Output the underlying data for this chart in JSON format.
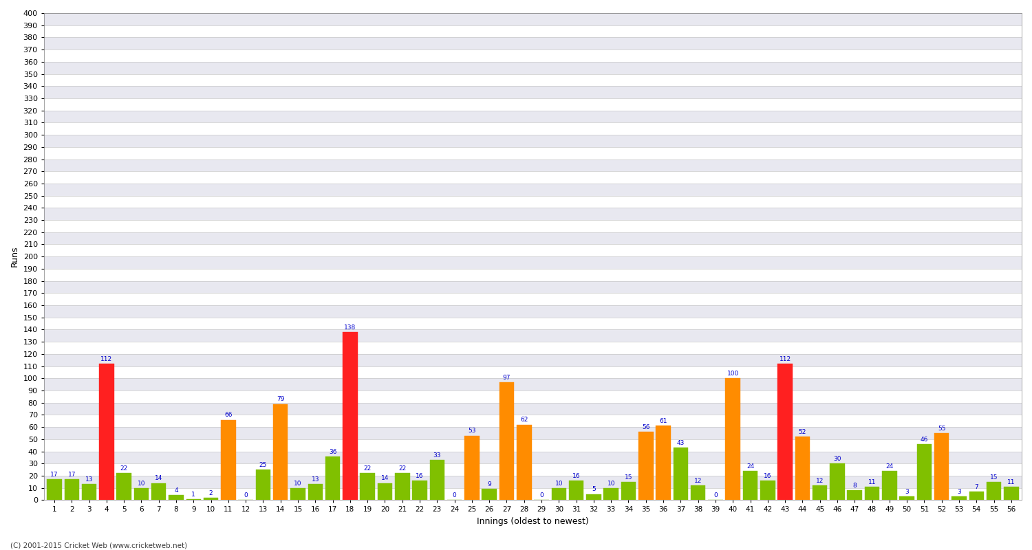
{
  "innings": [
    1,
    2,
    3,
    4,
    5,
    6,
    7,
    8,
    9,
    10,
    11,
    12,
    13,
    14,
    15,
    16,
    17,
    18,
    19,
    20,
    21,
    22,
    23,
    24,
    25,
    26,
    27,
    28,
    29,
    30,
    31,
    32,
    33,
    34,
    35,
    36,
    37,
    38,
    39,
    40,
    41,
    42,
    43,
    44,
    45,
    46,
    47,
    48,
    49,
    50,
    51,
    52,
    53,
    54,
    55,
    56
  ],
  "scores": [
    17,
    17,
    13,
    112,
    22,
    10,
    14,
    4,
    1,
    2,
    66,
    0,
    25,
    79,
    10,
    13,
    36,
    138,
    22,
    14,
    22,
    16,
    33,
    0,
    53,
    9,
    97,
    62,
    0,
    10,
    16,
    5,
    10,
    15,
    56,
    61,
    43,
    12,
    0,
    100,
    24,
    16,
    112,
    52,
    12,
    30,
    8,
    11,
    24,
    3,
    46,
    55,
    3,
    7,
    15,
    11
  ],
  "colors": [
    "#80c000",
    "#80c000",
    "#80c000",
    "#ff2020",
    "#80c000",
    "#80c000",
    "#80c000",
    "#80c000",
    "#80c000",
    "#80c000",
    "#ff8c00",
    "#80c000",
    "#80c000",
    "#ff8c00",
    "#80c000",
    "#80c000",
    "#80c000",
    "#ff2020",
    "#80c000",
    "#80c000",
    "#80c000",
    "#80c000",
    "#80c000",
    "#80c000",
    "#ff8c00",
    "#80c000",
    "#ff8c00",
    "#ff8c00",
    "#80c000",
    "#80c000",
    "#80c000",
    "#80c000",
    "#80c000",
    "#80c000",
    "#ff8c00",
    "#ff8c00",
    "#80c000",
    "#80c000",
    "#80c000",
    "#ff8c00",
    "#80c000",
    "#80c000",
    "#ff2020",
    "#ff8c00",
    "#80c000",
    "#80c000",
    "#80c000",
    "#80c000",
    "#80c000",
    "#80c000",
    "#80c000",
    "#ff8c00",
    "#80c000",
    "#80c000",
    "#80c000",
    "#80c000"
  ],
  "xlabel": "Innings (oldest to newest)",
  "ylabel": "Runs",
  "ylim": [
    0,
    400
  ],
  "ytick_step": 10,
  "bg_color": "#ffffff",
  "stripe_color": "#e8e8f0",
  "grid_color": "#c8c8c8",
  "label_color": "#0000cc",
  "tick_color": "#000000",
  "footer": "(C) 2001-2015 Cricket Web (www.cricketweb.net)"
}
